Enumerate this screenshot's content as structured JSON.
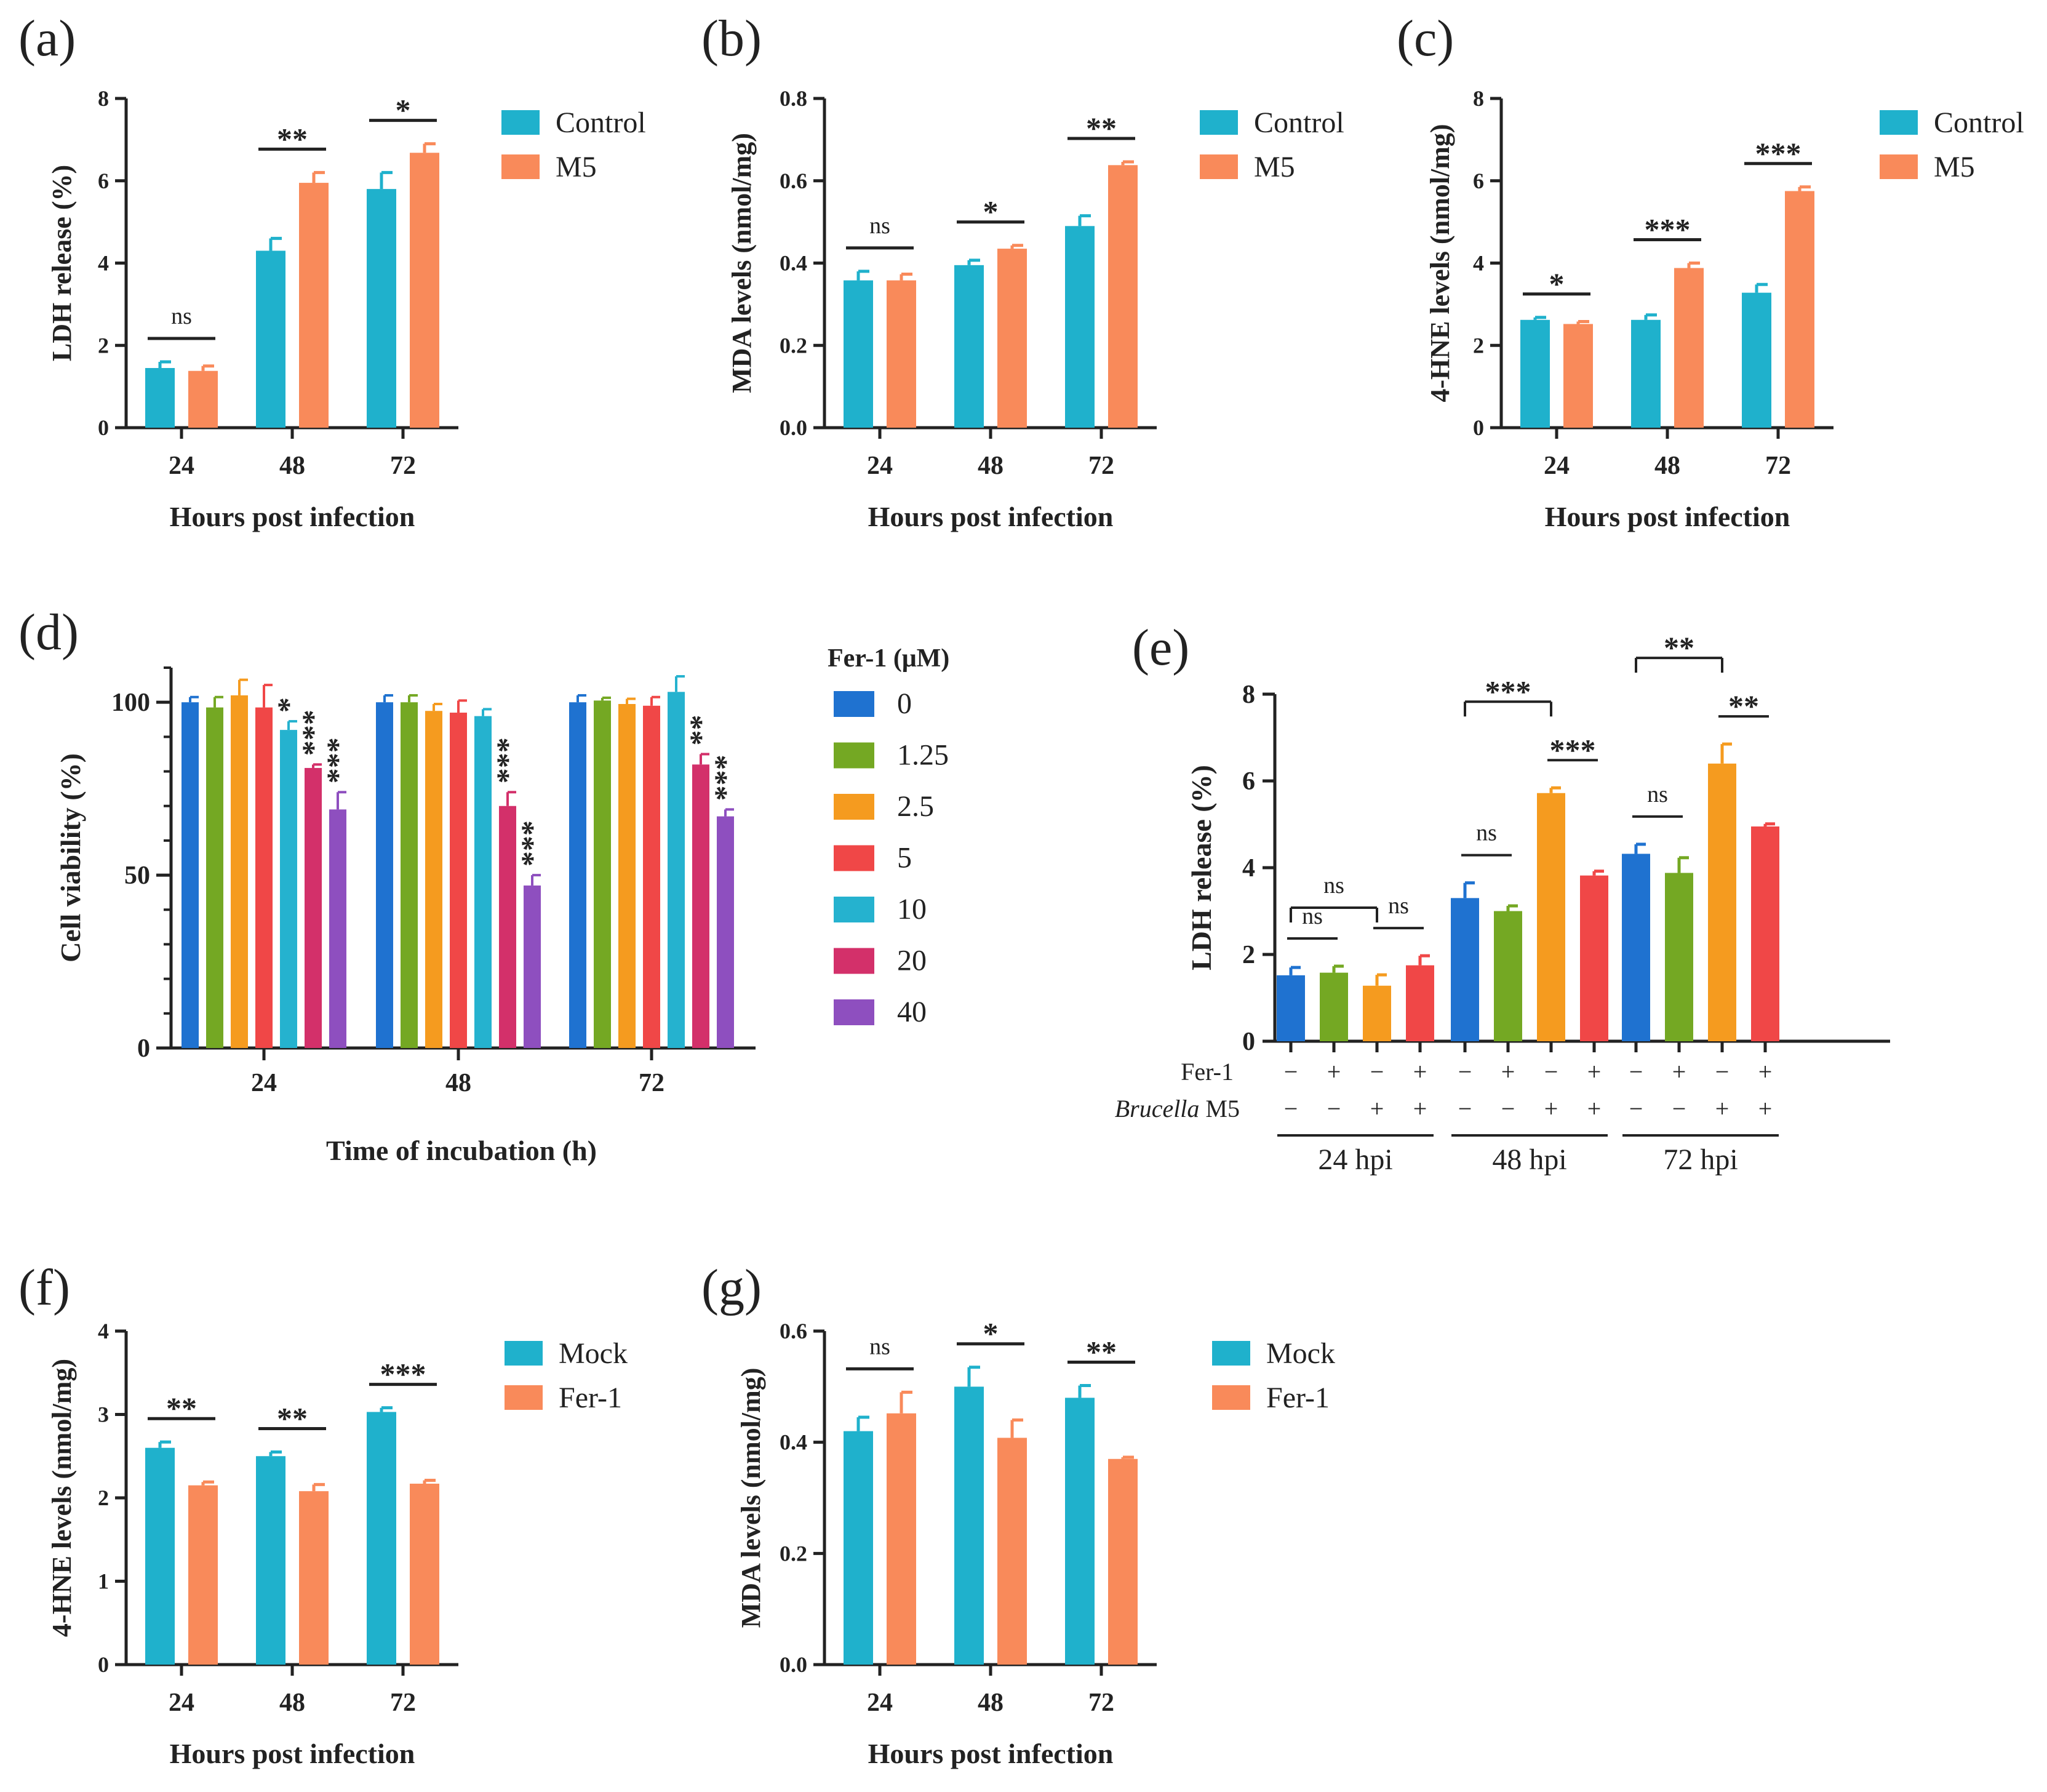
{
  "colors": {
    "control": "#1fb1cc",
    "m5": "#f98a5a",
    "axis": "#222222",
    "fer": [
      "#1f72d0",
      "#74a823",
      "#f59b1f",
      "#f04747",
      "#25b2cf",
      "#d3306a",
      "#8e4fbf"
    ]
  },
  "chart_data": [
    {
      "id": "a",
      "panel_label": "(a)",
      "type": "bar",
      "title": "",
      "xlabel": "Hours post infection",
      "ylabel": "LDH release (%)",
      "ylim": [
        0,
        8
      ],
      "yticks": [
        "0",
        "2",
        "4",
        "6",
        "8"
      ],
      "categories": [
        "24",
        "48",
        "72"
      ],
      "series": [
        {
          "name": "Control",
          "values": [
            1.45,
            4.3,
            5.8
          ],
          "errors": [
            0.15,
            0.3,
            0.4
          ]
        },
        {
          "name": "M5",
          "values": [
            1.38,
            5.95,
            6.68
          ],
          "errors": [
            0.12,
            0.25,
            0.22
          ]
        }
      ],
      "significance": [
        "ns",
        "**",
        "*"
      ],
      "legend": [
        "Control",
        "M5"
      ]
    },
    {
      "id": "b",
      "panel_label": "(b)",
      "type": "bar",
      "title": "",
      "xlabel": "Hours post infection",
      "ylabel": "MDA levels (nmol/mg)",
      "ylim": [
        0,
        0.8
      ],
      "yticks": [
        "0.0",
        "0.2",
        "0.4",
        "0.6",
        "0.8"
      ],
      "categories": [
        "24",
        "48",
        "72"
      ],
      "series": [
        {
          "name": "Control",
          "values": [
            0.358,
            0.395,
            0.49
          ],
          "errors": [
            0.022,
            0.012,
            0.025
          ]
        },
        {
          "name": "M5",
          "values": [
            0.358,
            0.435,
            0.638
          ],
          "errors": [
            0.015,
            0.008,
            0.008
          ]
        }
      ],
      "significance": [
        "ns",
        "*",
        "**"
      ],
      "legend": [
        "Control",
        "M5"
      ]
    },
    {
      "id": "c",
      "panel_label": "(c)",
      "type": "bar",
      "title": "",
      "xlabel": "Hours post infection",
      "ylabel": "4-HNE levels (nmol/mg)",
      "ylim": [
        0,
        8
      ],
      "yticks": [
        "0",
        "2",
        "4",
        "6",
        "8"
      ],
      "categories": [
        "24",
        "48",
        "72"
      ],
      "series": [
        {
          "name": "Control",
          "values": [
            2.62,
            2.62,
            3.28
          ],
          "errors": [
            0.06,
            0.12,
            0.2
          ]
        },
        {
          "name": "M5",
          "values": [
            2.52,
            3.88,
            5.75
          ],
          "errors": [
            0.06,
            0.12,
            0.1
          ]
        }
      ],
      "significance": [
        "*",
        "***",
        "***"
      ],
      "legend": [
        "Control",
        "M5"
      ]
    },
    {
      "id": "d",
      "panel_label": "(d)",
      "type": "bar",
      "title": "",
      "xlabel": "Time of incubation (h)",
      "ylabel": "Cell viability (%)",
      "ylim": [
        0,
        110
      ],
      "yticks": [
        "0",
        "50",
        "100"
      ],
      "ytick_values": [
        0,
        50,
        100
      ],
      "categories": [
        "24",
        "48",
        "72"
      ],
      "legend_title": "Fer-1 (μM)",
      "series": [
        {
          "name": "0",
          "values": [
            100,
            100,
            100
          ],
          "errors": [
            1.5,
            2,
            2
          ]
        },
        {
          "name": "1.25",
          "values": [
            98.5,
            100,
            100.5
          ],
          "errors": [
            3,
            2,
            0.8
          ]
        },
        {
          "name": "2.5",
          "values": [
            102,
            97.5,
            99.5
          ],
          "errors": [
            4.5,
            2,
            1.5
          ]
        },
        {
          "name": "5",
          "values": [
            98.5,
            97,
            99
          ],
          "errors": [
            6.5,
            3.5,
            2.5
          ]
        },
        {
          "name": "10",
          "values": [
            92,
            96,
            103
          ],
          "errors": [
            2.5,
            2,
            4.5
          ]
        },
        {
          "name": "20",
          "values": [
            81,
            70,
            82
          ],
          "errors": [
            1,
            4,
            3
          ]
        },
        {
          "name": "40",
          "values": [
            69,
            47,
            67
          ],
          "errors": [
            5,
            3,
            2
          ]
        }
      ],
      "significance": [
        [
          "",
          "",
          "",
          "",
          "*",
          "***",
          "***"
        ],
        [
          "",
          "",
          "",
          "",
          "",
          "***",
          "***"
        ],
        [
          "",
          "",
          "",
          "",
          "",
          "**",
          "***"
        ]
      ]
    },
    {
      "id": "e",
      "panel_label": "(e)",
      "type": "bar",
      "title": "",
      "xlabel": "",
      "ylabel": "LDH release (%)",
      "ylim": [
        0,
        8
      ],
      "yticks": [
        "0",
        "2",
        "4",
        "6",
        "8"
      ],
      "groups": [
        "24 hpi",
        "48 hpi",
        "72 hpi"
      ],
      "row_labels": {
        "fer": "Fer-1",
        "brucella_italic": "Brucella",
        "brucella_rest": " M5"
      },
      "fer_signs": [
        "−",
        "+",
        "−",
        "+"
      ],
      "brucella_signs": [
        "−",
        "−",
        "+",
        "+"
      ],
      "values": [
        [
          1.52,
          1.58,
          1.28,
          1.75
        ],
        [
          3.3,
          3.0,
          5.72,
          3.82
        ],
        [
          4.32,
          3.88,
          6.4,
          4.95
        ]
      ],
      "errors": [
        [
          0.18,
          0.15,
          0.25,
          0.22
        ],
        [
          0.35,
          0.12,
          0.12,
          0.1
        ],
        [
          0.22,
          0.35,
          0.45,
          0.06
        ]
      ],
      "comparisons": [
        {
          "group": 0,
          "from": 0,
          "to": 2,
          "label": "ns",
          "bracket": true
        },
        {
          "group": 0,
          "from": 0,
          "to": 1,
          "label": "ns",
          "bracket": false
        },
        {
          "group": 0,
          "from": 2,
          "to": 3,
          "label": "ns",
          "bracket": false
        },
        {
          "group": 1,
          "from": 0,
          "to": 1,
          "label": "ns",
          "bracket": false
        },
        {
          "group": 1,
          "from": 0,
          "to": 2,
          "label": "***",
          "bracket": true
        },
        {
          "group": 1,
          "from": 2,
          "to": 3,
          "label": "***",
          "bracket": false
        },
        {
          "group": 2,
          "from": 0,
          "to": 1,
          "label": "ns",
          "bracket": false
        },
        {
          "group": 2,
          "from": 0,
          "to": 2,
          "label": "**",
          "bracket": true
        },
        {
          "group": 2,
          "from": 2,
          "to": 3,
          "label": "**",
          "bracket": false
        }
      ]
    },
    {
      "id": "f",
      "panel_label": "(f)",
      "type": "bar",
      "title": "",
      "xlabel": "Hours post infection",
      "ylabel": "4-HNE levels (nmol/mg)",
      "ylim": [
        0,
        4
      ],
      "yticks": [
        "0",
        "1",
        "2",
        "3",
        "4"
      ],
      "categories": [
        "24",
        "48",
        "72"
      ],
      "series": [
        {
          "name": "Mock",
          "values": [
            2.6,
            2.5,
            3.03
          ],
          "errors": [
            0.07,
            0.05,
            0.05
          ]
        },
        {
          "name": "Fer-1",
          "values": [
            2.15,
            2.08,
            2.17
          ],
          "errors": [
            0.04,
            0.08,
            0.04
          ]
        }
      ],
      "significance": [
        "**",
        "**",
        "***"
      ],
      "legend": [
        "Mock",
        "Fer-1"
      ]
    },
    {
      "id": "g",
      "panel_label": "(g)",
      "type": "bar",
      "title": "",
      "xlabel": "Hours post infection",
      "ylabel": "MDA levels (nmol/mg)",
      "ylim": [
        0,
        0.6
      ],
      "yticks": [
        "0.0",
        "0.2",
        "0.4",
        "0.6"
      ],
      "categories": [
        "24",
        "48",
        "72"
      ],
      "series": [
        {
          "name": "Mock",
          "values": [
            0.42,
            0.5,
            0.48
          ],
          "errors": [
            0.025,
            0.035,
            0.022
          ]
        },
        {
          "name": "Fer-1",
          "values": [
            0.452,
            0.408,
            0.37
          ],
          "errors": [
            0.038,
            0.032,
            0.003
          ]
        }
      ],
      "significance": [
        "ns",
        "*",
        "**"
      ],
      "legend": [
        "Mock",
        "Fer-1"
      ]
    }
  ]
}
